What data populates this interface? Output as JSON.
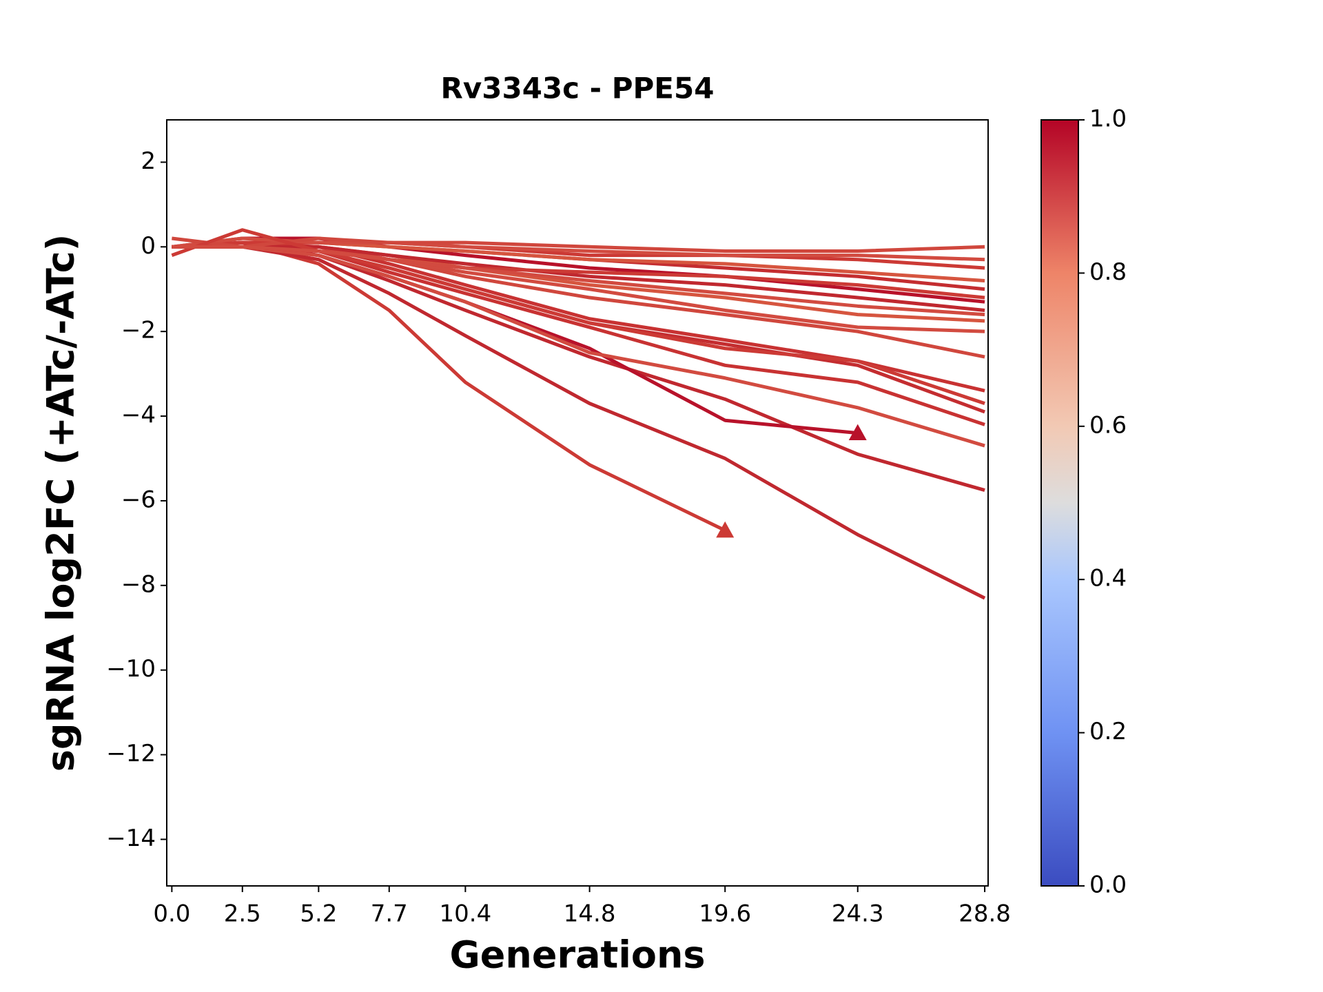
{
  "chart_data": {
    "type": "line",
    "title": "Rv3343c - PPE54",
    "x_label": "Generations",
    "y_label": "sgRNA log2FC (+ATc/-ATc)",
    "x": [
      0.0,
      2.5,
      5.2,
      7.7,
      10.4,
      14.8,
      19.6,
      24.3,
      28.8
    ],
    "xlim": [
      -0.18,
      28.92
    ],
    "xticks": [
      {
        "value": 0,
        "label": "0.0"
      },
      2.5,
      5.2,
      7.7,
      10.4,
      14.8,
      19.6,
      24.3,
      28.8
    ],
    "ylim": [
      -15.1,
      3
    ],
    "yticks": [
      {
        "value": 2,
        "label": "2"
      },
      {
        "value": 0,
        "label": "0"
      },
      {
        "value": -2,
        "label": "−2"
      },
      {
        "value": -4,
        "label": "−4"
      },
      {
        "value": -6,
        "label": "−6"
      },
      {
        "value": -8,
        "label": "−8"
      },
      {
        "value": -10,
        "label": "−10"
      },
      {
        "value": -12,
        "label": "−12"
      },
      {
        "value": -14,
        "label": "−14"
      }
    ],
    "end_marker": "triangle",
    "series": [
      {
        "color": "#cc3a35",
        "values": [
          0,
          0.1,
          -0.4,
          -1.5,
          -3.2,
          -5.15,
          -6.7,
          null,
          null
        ],
        "end_marker": true
      },
      {
        "color": "#c0282f",
        "values": [
          0,
          0,
          -0.3,
          -1.1,
          -2.1,
          -3.7,
          -5.0,
          -6.8,
          -8.3
        ]
      },
      {
        "color": "#c0282f",
        "values": [
          0,
          0,
          -0.2,
          -0.8,
          -1.5,
          -2.6,
          -3.6,
          -4.9,
          -5.75
        ]
      },
      {
        "color": "#b8122a",
        "values": [
          0,
          0.1,
          -0.2,
          -0.7,
          -1.3,
          -2.4,
          -4.1,
          -4.4,
          null
        ],
        "end_marker": true
      },
      {
        "color": "#d24b40",
        "values": [
          0,
          0,
          -0.2,
          -0.7,
          -1.3,
          -2.5,
          -3.1,
          -3.8,
          -4.7
        ]
      },
      {
        "color": "#c83232",
        "values": [
          0,
          0,
          -0.1,
          -0.6,
          -1.1,
          -1.9,
          -2.8,
          -3.2,
          -4.2
        ]
      },
      {
        "color": "#c42d30",
        "values": [
          0,
          0,
          -0.1,
          -0.5,
          -1.0,
          -1.8,
          -2.3,
          -2.8,
          -3.9
        ]
      },
      {
        "color": "#c83232",
        "values": [
          0,
          0.1,
          0,
          -0.4,
          -0.9,
          -1.7,
          -2.2,
          -2.7,
          -3.4
        ]
      },
      {
        "color": "#cc3a35",
        "values": [
          0,
          0,
          -0.1,
          -0.5,
          -1.0,
          -1.8,
          -2.4,
          -2.7,
          -3.7
        ]
      },
      {
        "color": "#d0473d",
        "values": [
          0,
          0,
          0,
          -0.3,
          -0.7,
          -1.2,
          -1.6,
          -2.0,
          -2.6
        ]
      },
      {
        "color": "#d24b40",
        "values": [
          0,
          0,
          0,
          -0.3,
          -0.6,
          -1.0,
          -1.5,
          -1.9,
          -2.0
        ]
      },
      {
        "color": "#d6553f",
        "values": [
          0,
          0,
          0,
          -0.2,
          -0.5,
          -0.9,
          -1.2,
          -1.6,
          -1.75
        ]
      },
      {
        "color": "#c0282f",
        "values": [
          0,
          0,
          0,
          -0.2,
          -0.4,
          -0.7,
          -0.9,
          -1.2,
          -1.5
        ]
      },
      {
        "color": "#b8122a",
        "values": [
          0,
          0.2,
          0.2,
          0,
          -0.2,
          -0.5,
          -0.7,
          -1.0,
          -1.3
        ]
      },
      {
        "color": "#c42d30",
        "values": [
          0,
          0.1,
          0.1,
          0,
          -0.1,
          -0.3,
          -0.5,
          -0.7,
          -1.0
        ]
      },
      {
        "color": "#d6553f",
        "values": [
          0,
          0.1,
          0.1,
          0,
          -0.1,
          -0.3,
          -0.4,
          -0.6,
          -0.8
        ]
      },
      {
        "color": "#cc3a35",
        "values": [
          0,
          0.1,
          0.1,
          0.1,
          0,
          -0.2,
          -0.2,
          -0.3,
          -0.5
        ]
      },
      {
        "color": "#d24b40",
        "values": [
          0,
          0.2,
          0.1,
          0.1,
          0,
          -0.1,
          -0.2,
          -0.2,
          -0.3
        ]
      },
      {
        "color": "#d0473d",
        "values": [
          0.2,
          0,
          0.2,
          0.1,
          0.1,
          0,
          -0.1,
          -0.1,
          0.0
        ]
      },
      {
        "color": "#cc3a35",
        "values": [
          -0.2,
          0.4,
          -0.1,
          -0.3,
          -0.5,
          -0.6,
          -0.7,
          -0.9,
          -1.2
        ]
      },
      {
        "color": "#d24b40",
        "values": [
          0,
          0,
          -0.1,
          -0.3,
          -0.5,
          -0.8,
          -1.1,
          -1.4,
          -1.6
        ]
      }
    ],
    "colorbar": {
      "colormap": "coolwarm",
      "lim": [
        0,
        1
      ],
      "ticks": [
        {
          "value": 0,
          "label": "0.0"
        },
        {
          "value": 0.2,
          "label": "0.2"
        },
        {
          "value": 0.4,
          "label": "0.4"
        },
        {
          "value": 0.6,
          "label": "0.6"
        },
        {
          "value": 0.8,
          "label": "0.8"
        },
        {
          "value": 1,
          "label": "1.0"
        }
      ]
    }
  }
}
